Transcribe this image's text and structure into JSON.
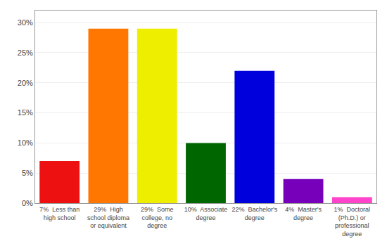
{
  "chart_data": {
    "type": "bar",
    "categories": [
      "7%  Less than\nhigh school",
      "29%  High\nschool diploma\nor equivalent",
      "29%  Some\ncollege, no\ndegree",
      "10%  Associate\ndegree",
      "22%  Bachelor's\ndegree",
      "4%  Master's\ndegree",
      "1%  Doctoral\n(Ph.D.) or\nprofessional\ndegree"
    ],
    "values": [
      7,
      29,
      29,
      10,
      22,
      4,
      1
    ],
    "colors": [
      "#ee1111",
      "#ff7700",
      "#eeee00",
      "#006600",
      "#0000dd",
      "#7700bb",
      "#ff44cc"
    ],
    "ylim": [
      0,
      32
    ],
    "yticks": [
      {
        "value": 0,
        "label": "0%"
      },
      {
        "value": 5,
        "label": "5%"
      },
      {
        "value": 10,
        "label": "10%"
      },
      {
        "value": 15,
        "label": "15%"
      },
      {
        "value": 20,
        "label": "20%"
      },
      {
        "value": 25,
        "label": "25%"
      },
      {
        "value": 30,
        "label": "30%"
      }
    ],
    "grid": true
  }
}
